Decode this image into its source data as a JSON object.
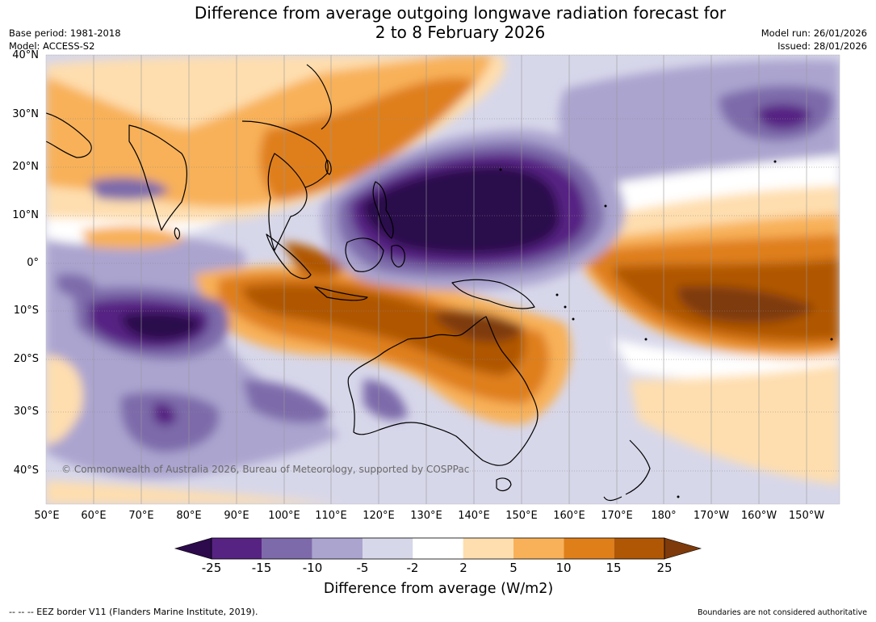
{
  "header": {
    "title_line1": "Difference from average outgoing longwave radiation forecast for",
    "title_line2": "2 to 8 February 2026",
    "base_period": "Base period: 1981-2018",
    "model": "Model: ACCESS-S2",
    "model_run": "Model run: 26/01/2026",
    "issued": "Issued: 28/01/2026"
  },
  "map": {
    "lat_labels": [
      "40°N",
      "30°N",
      "20°N",
      "10°N",
      "0°",
      "10°S",
      "20°S",
      "30°S",
      "40°S"
    ],
    "lon_labels": [
      "50°E",
      "60°E",
      "70°E",
      "80°E",
      "90°E",
      "100°E",
      "110°E",
      "120°E",
      "130°E",
      "140°E",
      "150°E",
      "160°E",
      "170°E",
      "180°",
      "170°W",
      "160°W",
      "150°W"
    ],
    "copyright": "© Commonwealth of Australia 2026, Bureau of Meteorology, supported by COSPPac"
  },
  "colorbar": {
    "tick_labels": [
      "-25",
      "-15",
      "-10",
      "-5",
      "-2",
      "2",
      "5",
      "10",
      "15",
      "25"
    ],
    "colors": [
      "#2c0a4c",
      "#562383",
      "#7d6aaa",
      "#aba4cf",
      "#d7d7ea",
      "#ffffff",
      "#fedeaf",
      "#f8b158",
      "#df7f1a",
      "#b05706",
      "#7e3a0a"
    ],
    "title": "Difference from average (W/m2)"
  },
  "footer": {
    "eez_note": "--  --  -- EEZ border V11 (Flanders Marine Institute, 2019).",
    "boundaries_note": "Boundaries are not considered authoritative"
  }
}
